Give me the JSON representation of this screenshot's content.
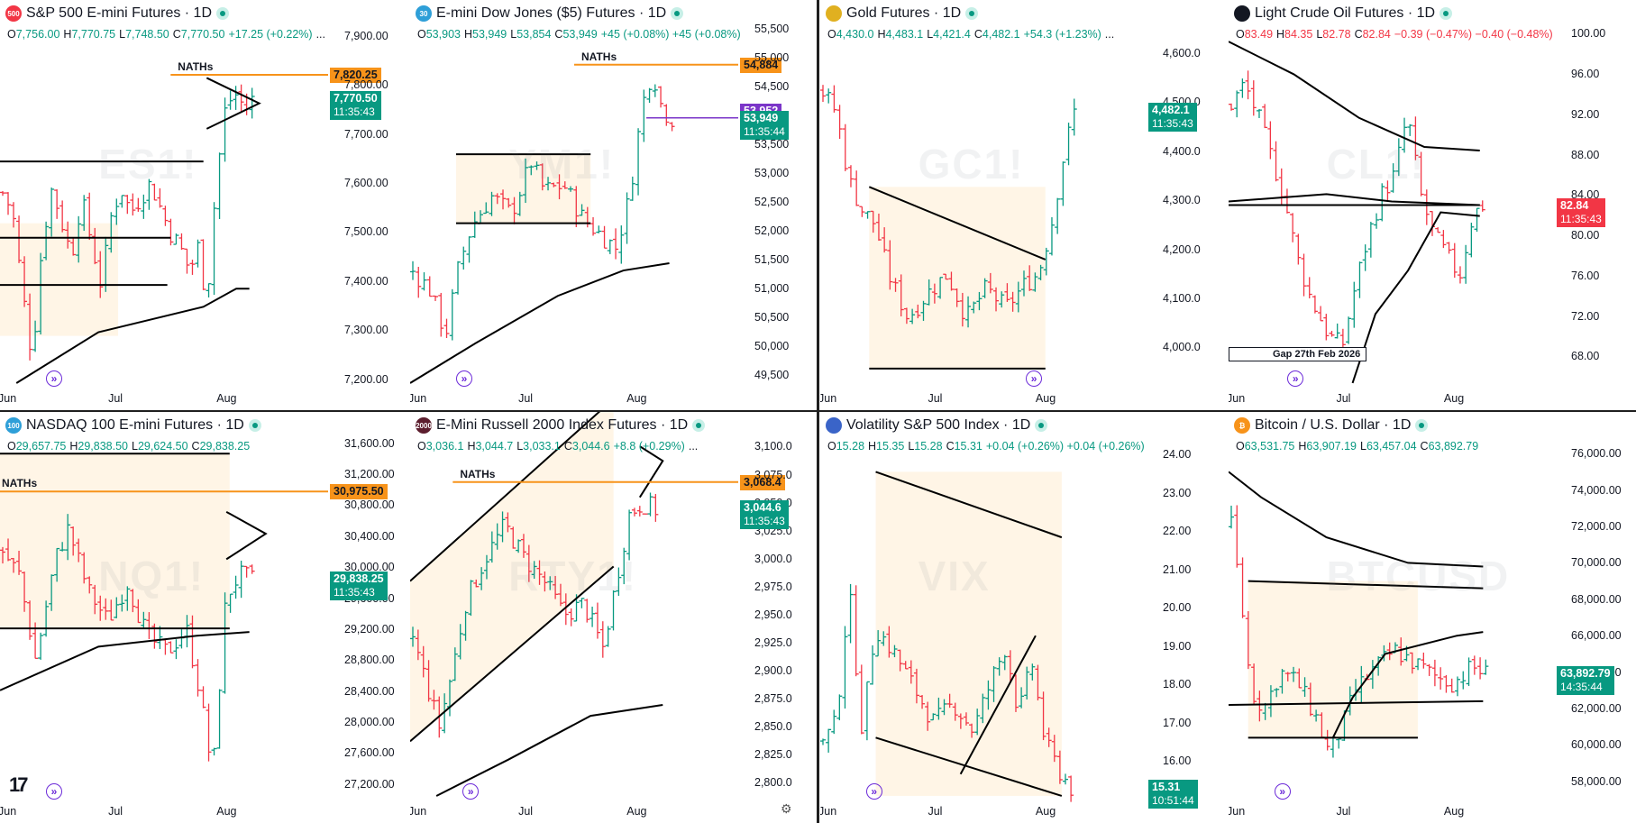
{
  "colors": {
    "up": "#089981",
    "down": "#f23645",
    "box": "#fff3e0",
    "ath": "#f7931a",
    "ma": "#000000",
    "nav": "#6c2bd9"
  },
  "icons": {
    "live": "live-dot-icon",
    "nav": "jump-to-realtime-icon",
    "brand": "tradingview-logo-icon",
    "settings": "settings-icon"
  },
  "panes": [
    {
      "id": "es",
      "logo": "500",
      "logo_color": "#f23645",
      "title": "S&P 500 E-mini Futures",
      "tf": "1D",
      "ohlc": {
        "o": "7,756.00",
        "h": "7,770.75",
        "l": "7,748.50",
        "c": "7,770.50",
        "chg": "+17.25 (+0.22%)",
        "tail": "..."
      },
      "watermark": "ES1!",
      "ticks": [
        "7,900.00",
        "7,800.00",
        "7,700.00",
        "7,600.00",
        "7,500.00",
        "7,400.00",
        "7,300.00",
        "7,200.00"
      ],
      "months": [
        "Jun",
        "Jul",
        "Aug"
      ],
      "ath_label": "NATHs",
      "ath_price": "7,820.25",
      "cur_price": "7,770.50",
      "countdown": "11:35:43"
    },
    {
      "id": "ym",
      "logo": "30",
      "logo_color": "#2e9fd8",
      "title": "E-mini Dow Jones ($5) Futures",
      "tf": "1D",
      "ohlc": {
        "o": "53,903",
        "h": "53,949",
        "l": "53,854",
        "c": "53,949",
        "chg": "+45 (+0.08%) +45 (+0.08%)",
        "tail": ""
      },
      "watermark": "YM1!",
      "ticks": [
        "55,500",
        "55,000",
        "54,500",
        "54,000",
        "53,500",
        "53,000",
        "52,500",
        "52,000",
        "51,500",
        "51,000",
        "50,500",
        "50,000",
        "49,500"
      ],
      "months": [
        "Jun",
        "Jul",
        "Aug"
      ],
      "ath_label": "NATHs",
      "ath_price": "54,884",
      "purple_price": "53,952",
      "cur_price": "53,949",
      "countdown": "11:35:44"
    },
    {
      "id": "gc",
      "logo": "",
      "logo_color": "#e0b020",
      "title": "Gold Futures",
      "tf": "1D",
      "ohlc": {
        "o": "4,430.0",
        "h": "4,483.1",
        "l": "4,421.4",
        "c": "4,482.1",
        "chg": "+54.3 (+1.23%)",
        "tail": "..."
      },
      "watermark": "GC1!",
      "ticks": [
        "4,600.0",
        "4,500.0",
        "4,400.0",
        "4,300.0",
        "4,200.0",
        "4,100.0",
        "4,000.0"
      ],
      "months": [
        "Jun",
        "Jul",
        "Aug"
      ],
      "cur_price": "4,482.1",
      "countdown": "11:35:43"
    },
    {
      "id": "cl",
      "logo": "",
      "logo_color": "#131722",
      "title": "Light Crude Oil Futures",
      "tf": "1D",
      "ohlc": {
        "o": "83.49",
        "h": "84.35",
        "l": "82.78",
        "c": "82.84",
        "chg": "−0.39 (−0.47%) −0.40 (−0.48%)",
        "tail": ""
      },
      "watermark": "CL1!",
      "ticks": [
        "100.00",
        "96.00",
        "92.00",
        "88.00",
        "84.00",
        "80.00",
        "76.00",
        "72.00",
        "68.00"
      ],
      "months": [
        "Jun",
        "Jul",
        "Aug"
      ],
      "gap_label": "Gap 27th Feb 2026",
      "cur_price": "82.84",
      "countdown": "11:35:43"
    },
    {
      "id": "nq",
      "logo": "100",
      "logo_color": "#2e9fd8",
      "title": "NASDAQ 100 E-mini Futures",
      "tf": "1D",
      "ohlc": {
        "o": "29,657.75",
        "h": "29,838.50",
        "l": "29,624.50",
        "c": "29,838.25",
        "chg": "",
        "tail": ""
      },
      "watermark": "NQ1!",
      "ticks": [
        "31,600.00",
        "31,200.00",
        "30,800.00",
        "30,400.00",
        "30,000.00",
        "29,600.00",
        "29,200.00",
        "28,800.00",
        "28,400.00",
        "28,000.00",
        "27,600.00",
        "27,200.00"
      ],
      "months": [
        "Jun",
        "Jul",
        "Aug"
      ],
      "ath_label": "NATHs",
      "ath_price": "30,975.50",
      "cur_price": "29,838.25",
      "countdown": "11:35:43"
    },
    {
      "id": "rty",
      "logo": "2000",
      "logo_color": "#5c1e2e",
      "title": "E-Mini Russell 2000 Index Futures",
      "tf": "1D",
      "ohlc": {
        "o": "3,036.1",
        "h": "3,044.7",
        "l": "3,033.1",
        "c": "3,044.6",
        "chg": "+8.8 (+0.29%)",
        "tail": "..."
      },
      "watermark": "RTY1!",
      "ticks": [
        "3,100.0",
        "3,075.0",
        "3,050.0",
        "3,025.0",
        "3,000.0",
        "2,975.0",
        "2,950.0",
        "2,925.0",
        "2,900.0",
        "2,875.0",
        "2,850.0",
        "2,825.0",
        "2,800.0"
      ],
      "months": [
        "Jun",
        "Jul",
        "Aug"
      ],
      "ath_label": "NATHs",
      "ath_price": "3,068.4",
      "cur_price": "3,044.6",
      "countdown": "11:35:43"
    },
    {
      "id": "vix",
      "logo": "",
      "logo_color": "#3a64c8",
      "title": "Volatility S&P 500 Index",
      "tf": "1D",
      "ohlc": {
        "o": "15.28",
        "h": "15.35",
        "l": "15.28",
        "c": "15.31",
        "chg": "+0.04 (+0.26%) +0.04 (+0.26%)",
        "tail": ""
      },
      "watermark": "VIX",
      "ticks": [
        "24.00",
        "23.00",
        "22.00",
        "21.00",
        "20.00",
        "19.00",
        "18.00",
        "17.00",
        "16.00"
      ],
      "months": [
        "Jun",
        "Jul",
        "Aug"
      ],
      "cur_price": "15.31",
      "countdown": "10:51:44"
    },
    {
      "id": "btc",
      "logo": "₿",
      "logo_color": "#f7931a",
      "title": "Bitcoin / U.S. Dollar",
      "tf": "1D",
      "ohlc": {
        "o": "63,531.75",
        "h": "63,907.19",
        "l": "63,457.04",
        "c": "63,892.79",
        "chg": "",
        "tail": ""
      },
      "watermark": "BTCUSD",
      "ticks": [
        "76,000.00",
        "74,000.00",
        "72,000.00",
        "70,000.00",
        "68,000.00",
        "66,000.00",
        "64,000.00",
        "62,000.00",
        "60,000.00",
        "58,000.00"
      ],
      "months": [
        "Jun",
        "Jul",
        "Aug"
      ],
      "cur_price": "63,892.79",
      "countdown": "14:35:44"
    }
  ],
  "chart_data": [
    {
      "type": "candlestick",
      "title": "S&P 500 E-mini Futures · 1D",
      "ylim": [
        7185,
        7925
      ],
      "x_months": [
        "Jun",
        "Jul",
        "Aug"
      ],
      "last": 7770.5,
      "ath": 7820.25,
      "shape": [
        [
          0.0,
          7580
        ],
        [
          0.03,
          7540
        ],
        [
          0.06,
          7380
        ],
        [
          0.09,
          7240
        ],
        [
          0.12,
          7480
        ],
        [
          0.15,
          7590
        ],
        [
          0.18,
          7520
        ],
        [
          0.21,
          7450
        ],
        [
          0.24,
          7570
        ],
        [
          0.27,
          7480
        ],
        [
          0.3,
          7390
        ],
        [
          0.33,
          7530
        ],
        [
          0.36,
          7590
        ],
        [
          0.39,
          7540
        ],
        [
          0.42,
          7570
        ],
        [
          0.45,
          7600
        ],
        [
          0.48,
          7550
        ],
        [
          0.51,
          7500
        ],
        [
          0.54,
          7470
        ],
        [
          0.57,
          7420
        ],
        [
          0.6,
          7480
        ],
        [
          0.62,
          7340
        ],
        [
          0.65,
          7600
        ],
        [
          0.68,
          7760
        ],
        [
          0.71,
          7780
        ],
        [
          0.74,
          7750
        ],
        [
          0.76,
          7770
        ]
      ]
    },
    {
      "type": "candlestick",
      "title": "E-mini Dow Jones ($5) Futures · 1D",
      "ylim": [
        49300,
        55600
      ],
      "x_months": [
        "Jun",
        "Jul",
        "Aug"
      ],
      "last": 53949,
      "ath": 54884,
      "shape": [
        [
          0.0,
          51300
        ],
        [
          0.05,
          51000
        ],
        [
          0.1,
          50200
        ],
        [
          0.14,
          51400
        ],
        [
          0.18,
          52100
        ],
        [
          0.24,
          52600
        ],
        [
          0.3,
          52300
        ],
        [
          0.36,
          53200
        ],
        [
          0.4,
          52700
        ],
        [
          0.46,
          52800
        ],
        [
          0.52,
          52200
        ],
        [
          0.58,
          51900
        ],
        [
          0.62,
          51700
        ],
        [
          0.66,
          52600
        ],
        [
          0.7,
          54200
        ],
        [
          0.73,
          54800
        ],
        [
          0.76,
          54100
        ],
        [
          0.79,
          53950
        ]
      ]
    },
    {
      "type": "candlestick",
      "title": "Gold Futures · 1D",
      "ylim": [
        3920,
        4660
      ],
      "x_months": [
        "Jun",
        "Jul",
        "Aug"
      ],
      "last": 4482.1,
      "shape": [
        [
          0.0,
          4520
        ],
        [
          0.04,
          4480
        ],
        [
          0.08,
          4340
        ],
        [
          0.12,
          4280
        ],
        [
          0.16,
          4250
        ],
        [
          0.2,
          4150
        ],
        [
          0.26,
          4060
        ],
        [
          0.32,
          4110
        ],
        [
          0.38,
          4150
        ],
        [
          0.44,
          4060
        ],
        [
          0.5,
          4120
        ],
        [
          0.56,
          4080
        ],
        [
          0.62,
          4130
        ],
        [
          0.66,
          4150
        ],
        [
          0.7,
          4250
        ],
        [
          0.74,
          4400
        ],
        [
          0.77,
          4480
        ]
      ]
    },
    {
      "type": "candlestick",
      "title": "Light Crude Oil Futures · 1D",
      "ylim": [
        65,
        101
      ],
      "x_months": [
        "Jun",
        "Jul",
        "Aug"
      ],
      "last": 82.84,
      "shape": [
        [
          0.0,
          93
        ],
        [
          0.04,
          95
        ],
        [
          0.08,
          92
        ],
        [
          0.12,
          88
        ],
        [
          0.16,
          84
        ],
        [
          0.2,
          78
        ],
        [
          0.24,
          74
        ],
        [
          0.3,
          70
        ],
        [
          0.34,
          69
        ],
        [
          0.38,
          75
        ],
        [
          0.42,
          80
        ],
        [
          0.46,
          84
        ],
        [
          0.5,
          86
        ],
        [
          0.54,
          92
        ],
        [
          0.58,
          84
        ],
        [
          0.62,
          80
        ],
        [
          0.66,
          78
        ],
        [
          0.7,
          76
        ],
        [
          0.74,
          82
        ],
        [
          0.77,
          83
        ]
      ]
    },
    {
      "type": "candlestick",
      "title": "NASDAQ 100 E-mini Futures · 1D",
      "ylim": [
        27000,
        31700
      ],
      "x_months": [
        "Jun",
        "Jul",
        "Aug"
      ],
      "last": 29838.25,
      "ath": 30975.5,
      "shape": [
        [
          0.0,
          30200
        ],
        [
          0.05,
          29900
        ],
        [
          0.1,
          28800
        ],
        [
          0.16,
          30100
        ],
        [
          0.2,
          30500
        ],
        [
          0.26,
          29700
        ],
        [
          0.32,
          29300
        ],
        [
          0.38,
          29800
        ],
        [
          0.44,
          29100
        ],
        [
          0.5,
          28900
        ],
        [
          0.56,
          29200
        ],
        [
          0.6,
          28400
        ],
        [
          0.64,
          27300
        ],
        [
          0.68,
          29600
        ],
        [
          0.72,
          29900
        ],
        [
          0.76,
          29840
        ]
      ]
    },
    {
      "type": "candlestick",
      "title": "E-Mini Russell 2000 Index Futures · 1D",
      "ylim": [
        2785,
        3110
      ],
      "x_months": [
        "Jun",
        "Jul",
        "Aug"
      ],
      "last": 3044.6,
      "ath": 3068.4,
      "shape": [
        [
          0.0,
          2930
        ],
        [
          0.04,
          2890
        ],
        [
          0.08,
          2850
        ],
        [
          0.12,
          2900
        ],
        [
          0.16,
          2960
        ],
        [
          0.22,
          3000
        ],
        [
          0.28,
          3030
        ],
        [
          0.34,
          3000
        ],
        [
          0.4,
          2980
        ],
        [
          0.46,
          2950
        ],
        [
          0.52,
          2960
        ],
        [
          0.58,
          2920
        ],
        [
          0.62,
          2980
        ],
        [
          0.66,
          3040
        ],
        [
          0.7,
          3050
        ],
        [
          0.74,
          3044
        ]
      ]
    },
    {
      "type": "candlestick",
      "title": "Volatility S&P 500 Index · 1D",
      "ylim": [
        15.0,
        24.5
      ],
      "x_months": [
        "Jun",
        "Jul",
        "Aug"
      ],
      "last": 15.31,
      "shape": [
        [
          0.0,
          16.5
        ],
        [
          0.04,
          17.0
        ],
        [
          0.08,
          20.5
        ],
        [
          0.12,
          16.8
        ],
        [
          0.16,
          19.5
        ],
        [
          0.22,
          18.8
        ],
        [
          0.28,
          17.9
        ],
        [
          0.34,
          17.0
        ],
        [
          0.4,
          17.5
        ],
        [
          0.46,
          16.8
        ],
        [
          0.52,
          18.2
        ],
        [
          0.56,
          19.0
        ],
        [
          0.6,
          17.2
        ],
        [
          0.64,
          18.6
        ],
        [
          0.68,
          16.5
        ],
        [
          0.72,
          15.8
        ],
        [
          0.76,
          15.3
        ]
      ]
    },
    {
      "type": "candlestick",
      "title": "Bitcoin / U.S. Dollar · 1D",
      "ylim": [
        57000,
        77000
      ],
      "x_months": [
        "Jun",
        "Jul",
        "Aug"
      ],
      "last": 63892.79,
      "shape": [
        [
          0.0,
          72000
        ],
        [
          0.03,
          68000
        ],
        [
          0.06,
          63000
        ],
        [
          0.1,
          62000
        ],
        [
          0.15,
          64000
        ],
        [
          0.2,
          63500
        ],
        [
          0.26,
          61500
        ],
        [
          0.3,
          59500
        ],
        [
          0.34,
          61000
        ],
        [
          0.38,
          63000
        ],
        [
          0.44,
          64200
        ],
        [
          0.5,
          65200
        ],
        [
          0.56,
          64500
        ],
        [
          0.62,
          63800
        ],
        [
          0.68,
          63400
        ],
        [
          0.74,
          64300
        ],
        [
          0.78,
          63900
        ]
      ]
    }
  ]
}
